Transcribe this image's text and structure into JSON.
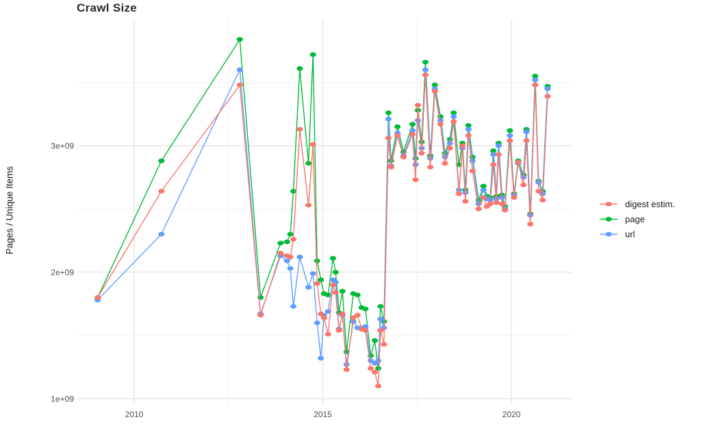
{
  "title": "Crawl Size",
  "chart_data": {
    "type": "line",
    "title": "Crawl Size",
    "xlabel": "",
    "ylabel": "Pages / Unique Items",
    "unit": "pages / unique items, values in billions (1e9)",
    "x_unit": "calendar year (decimal)",
    "grid": true,
    "legend_position": "right",
    "xlim": [
      2008.5,
      2021.6
    ],
    "ylim_billion": [
      0.95,
      4.0
    ],
    "x_ticks": [
      {
        "value": 2010,
        "label": "2010"
      },
      {
        "value": 2015,
        "label": "2015"
      },
      {
        "value": 2020,
        "label": "2020"
      }
    ],
    "x_minor_ticks": [
      2012.5,
      2017.5
    ],
    "y_ticks": [
      {
        "value": 1,
        "label": "1e+09"
      },
      {
        "value": 2,
        "label": "2e+09"
      },
      {
        "value": 3,
        "label": "3e+09"
      }
    ],
    "y_minor_ticks": [
      1.5,
      2.5,
      3.5
    ],
    "x": [
      2009.03,
      2010.72,
      2012.8,
      2013.35,
      2013.88,
      2014.05,
      2014.14,
      2014.22,
      2014.39,
      2014.62,
      2014.74,
      2014.85,
      2014.95,
      2015.03,
      2015.14,
      2015.27,
      2015.34,
      2015.43,
      2015.52,
      2015.63,
      2015.81,
      2015.92,
      2016.03,
      2016.13,
      2016.27,
      2016.38,
      2016.47,
      2016.53,
      2016.62,
      2016.74,
      2016.81,
      2016.98,
      2017.14,
      2017.38,
      2017.46,
      2017.52,
      2017.62,
      2017.72,
      2017.85,
      2017.97,
      2018.12,
      2018.24,
      2018.37,
      2018.47,
      2018.61,
      2018.7,
      2018.78,
      2018.86,
      2018.97,
      2019.13,
      2019.26,
      2019.35,
      2019.44,
      2019.52,
      2019.6,
      2019.66,
      2019.75,
      2019.83,
      2019.96,
      2020.07,
      2020.18,
      2020.32,
      2020.4,
      2020.5,
      2020.63,
      2020.72,
      2020.83,
      2020.96
    ],
    "series": [
      {
        "name": "digest estim.",
        "color": "#F8766D",
        "values": [
          1.8,
          2.64,
          3.48,
          1.66,
          2.15,
          2.13,
          2.12,
          2.26,
          3.13,
          2.53,
          3.01,
          1.91,
          1.67,
          1.64,
          1.51,
          1.9,
          1.84,
          1.54,
          1.67,
          1.23,
          1.64,
          1.66,
          1.55,
          1.54,
          1.24,
          1.21,
          1.1,
          1.54,
          1.43,
          3.06,
          2.83,
          3.08,
          2.91,
          3.09,
          2.73,
          3.32,
          2.94,
          3.56,
          2.83,
          3.43,
          3.17,
          2.86,
          2.98,
          3.19,
          2.62,
          3.0,
          2.56,
          3.08,
          2.8,
          2.5,
          2.59,
          2.52,
          2.54,
          2.85,
          2.55,
          2.93,
          2.54,
          2.49,
          3.04,
          2.59,
          2.87,
          2.69,
          3.04,
          2.38,
          3.48,
          2.64,
          2.57,
          3.39
        ]
      },
      {
        "name": "page",
        "color": "#00BA38",
        "values": [
          1.8,
          2.88,
          3.84,
          1.8,
          2.23,
          2.24,
          2.3,
          2.64,
          3.61,
          2.86,
          3.72,
          2.09,
          1.94,
          1.83,
          1.82,
          2.11,
          2.0,
          1.68,
          1.85,
          1.37,
          1.83,
          1.82,
          1.72,
          1.71,
          1.34,
          1.46,
          1.24,
          1.73,
          1.61,
          3.26,
          2.88,
          3.15,
          2.95,
          3.17,
          2.9,
          3.28,
          3.03,
          3.66,
          2.92,
          3.48,
          3.23,
          2.94,
          3.05,
          3.26,
          2.85,
          3.02,
          2.65,
          3.16,
          2.91,
          2.57,
          2.68,
          2.6,
          2.59,
          2.96,
          2.6,
          3.02,
          2.61,
          2.52,
          3.12,
          2.62,
          2.88,
          2.77,
          3.13,
          2.46,
          3.55,
          2.72,
          2.64,
          3.47
        ]
      },
      {
        "name": "url",
        "color": "#619CFF",
        "values": [
          1.78,
          2.3,
          3.6,
          1.67,
          2.13,
          2.09,
          2.03,
          1.73,
          2.12,
          1.88,
          1.99,
          1.6,
          1.32,
          1.66,
          1.69,
          1.94,
          1.92,
          1.55,
          1.66,
          1.27,
          1.61,
          1.56,
          1.56,
          1.57,
          1.3,
          1.28,
          1.3,
          1.63,
          1.56,
          3.21,
          2.84,
          3.1,
          2.92,
          3.12,
          2.85,
          3.2,
          2.98,
          3.6,
          2.9,
          3.45,
          3.2,
          2.91,
          3.02,
          3.23,
          2.65,
          2.98,
          2.63,
          3.13,
          2.88,
          2.54,
          2.65,
          2.58,
          2.57,
          2.93,
          2.58,
          3.0,
          2.59,
          2.5,
          3.08,
          2.61,
          2.86,
          2.75,
          3.11,
          2.45,
          3.52,
          2.71,
          2.62,
          3.45
        ]
      }
    ],
    "draw_order": [
      "page",
      "url",
      "digest estim."
    ],
    "marker": "ellipse"
  },
  "style": {
    "grid_major_color": "#E2E2E2",
    "grid_minor_color": "#EFEFEF",
    "tick_label_color": "#4d4d4d",
    "background": "#ffffff"
  }
}
